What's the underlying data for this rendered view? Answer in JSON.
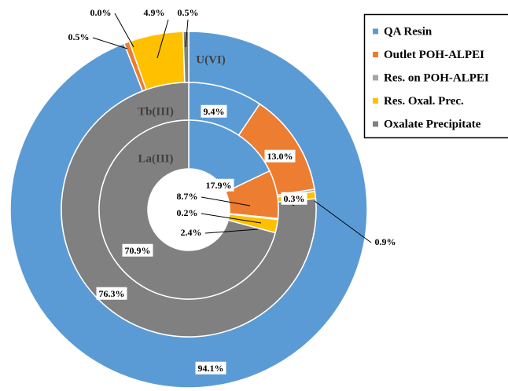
{
  "chart_data": {
    "type": "donut",
    "categories": [
      "QA Resin",
      "Outlet POH-ALPEI",
      "Res. on POH-ALPEI",
      "Res. Oxal. Prec.",
      "Oxalate Precipitate"
    ],
    "colors": [
      "#5b9bd5",
      "#ed7d31",
      "#a5a5a5",
      "#ffc000",
      "#808080"
    ],
    "series": [
      {
        "name": "U(VI)",
        "values": [
          94.1,
          0.5,
          0.0,
          4.9,
          0.5
        ],
        "value_labels": [
          "94.1%",
          "0.5%",
          "0.0%",
          "4.9%",
          "0.5%"
        ]
      },
      {
        "name": "Tb(III)",
        "values": [
          9.4,
          13.0,
          0.3,
          0.9,
          76.3
        ],
        "value_labels": [
          "9.4%",
          "13.0%",
          "0.3%",
          "0.9%",
          "76.3%"
        ]
      },
      {
        "name": "La(III)",
        "values": [
          17.9,
          8.7,
          0.2,
          2.4,
          70.9
        ],
        "value_labels": [
          "17.9%",
          "8.7%",
          "0.2%",
          "2.4%",
          "70.9%"
        ]
      }
    ],
    "legend": "upper right"
  }
}
